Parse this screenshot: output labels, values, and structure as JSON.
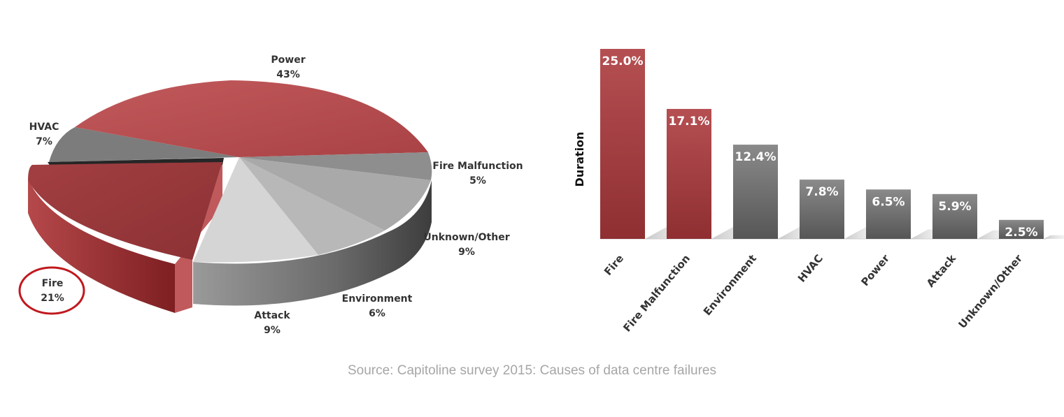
{
  "chart_data": [
    {
      "type": "pie",
      "title": "",
      "slices": [
        {
          "label": "Power",
          "value": 43,
          "value_label": "43%"
        },
        {
          "label": "Fire Malfunction",
          "value": 5,
          "value_label": "5%"
        },
        {
          "label": "Unknown/Other",
          "value": 9,
          "value_label": "9%"
        },
        {
          "label": "Environment",
          "value": 6,
          "value_label": "6%"
        },
        {
          "label": "Attack",
          "value": 9,
          "value_label": "9%"
        },
        {
          "label": "Fire",
          "value": 21,
          "value_label": "21%",
          "exploded": true,
          "highlighted": true
        },
        {
          "label": "HVAC",
          "value": 7,
          "value_label": "7%"
        }
      ]
    },
    {
      "type": "bar",
      "ylabel": "Duration",
      "xlabel": "",
      "categories": [
        "Fire",
        "Fire Malfunction",
        "Environment",
        "HVAC",
        "Power",
        "Attack",
        "Unknown/Other"
      ],
      "values": [
        25.0,
        17.1,
        12.4,
        7.8,
        6.5,
        5.9,
        2.5
      ],
      "value_labels": [
        "25.0%",
        "17.1%",
        "12.4%",
        "7.8%",
        "6.5%",
        "5.9%",
        "2.5%"
      ],
      "ylim": [
        0,
        25
      ],
      "highlighted_categories": [
        "Fire",
        "Fire Malfunction"
      ]
    }
  ],
  "source": "Source: Capitoline survey 2015: Causes of data centre failures",
  "colors": {
    "red": "#b0484b",
    "red_dark": "#8a2a2c",
    "gray": "#6e6e6e",
    "highlight_ring": "#c0191e",
    "source_text": "#a6a6a6"
  }
}
